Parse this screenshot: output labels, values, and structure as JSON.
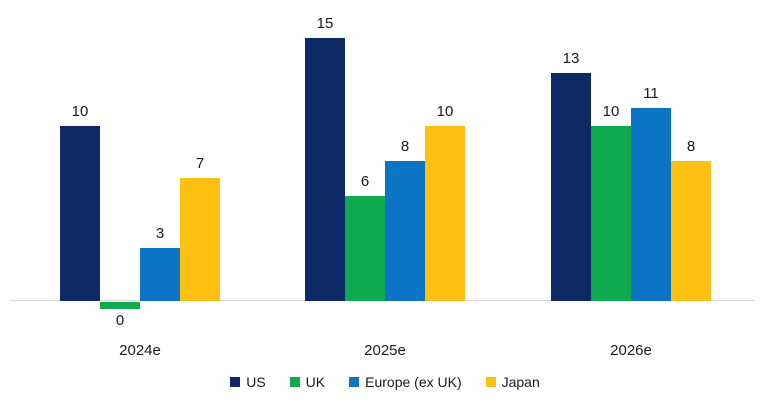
{
  "chart_data": {
    "type": "bar",
    "categories": [
      "2024e",
      "2025e",
      "2026e"
    ],
    "series": [
      {
        "name": "US",
        "color": "#0e2a66",
        "values": [
          10,
          15,
          13
        ]
      },
      {
        "name": "UK",
        "color": "#0fa94e",
        "values": [
          0,
          6,
          10
        ]
      },
      {
        "name": "Europe (ex UK)",
        "color": "#0b74c5",
        "values": [
          3,
          8,
          11
        ]
      },
      {
        "name": "Japan",
        "color": "#fdc010",
        "values": [
          7,
          10,
          8
        ]
      }
    ],
    "title": "",
    "xlabel": "",
    "ylabel": "",
    "ylim": [
      0,
      15
    ],
    "grid": false,
    "y_axis_visible": false,
    "value_labels": true,
    "legend_position": "bottom",
    "colors": {
      "axis_line": "#d9d9d9",
      "label_text": "#1a1a1a",
      "background": "#ffffff"
    }
  }
}
